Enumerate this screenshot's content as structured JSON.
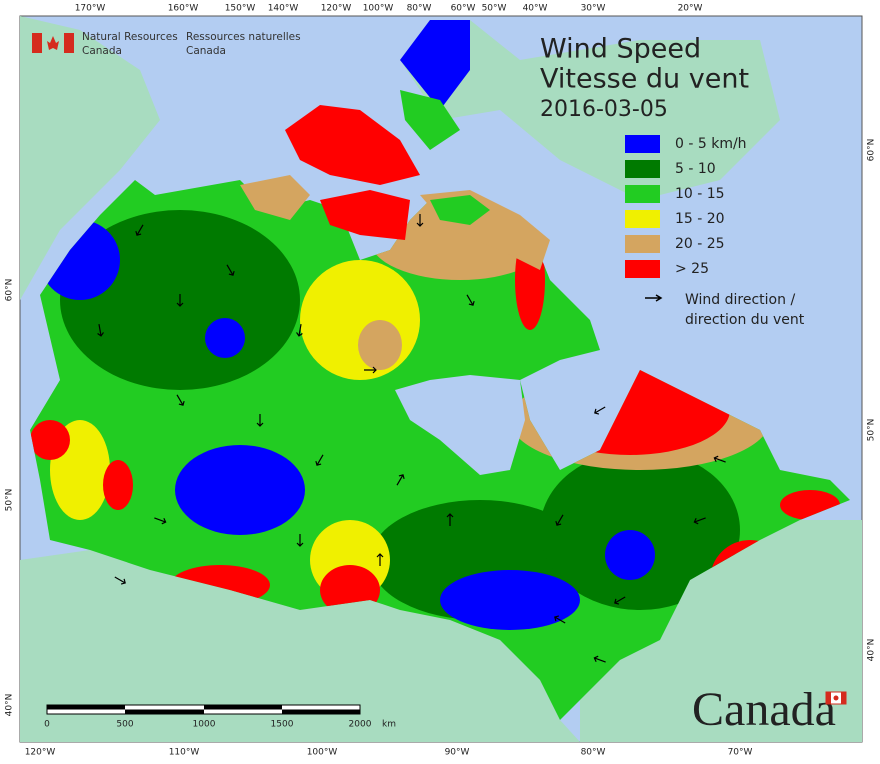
{
  "header": {
    "agency_en": [
      "Natural Resources",
      "Canada"
    ],
    "agency_fr": [
      "Ressources naturelles",
      "Canada"
    ]
  },
  "title": {
    "en": "Wind Speed",
    "fr": "Vitesse du vent",
    "date": "2016-03-05"
  },
  "legend": {
    "items": [
      {
        "label": "0 - 5 km/h",
        "color": "#0000ff"
      },
      {
        "label": "5 - 10",
        "color": "#007a00"
      },
      {
        "label": "10 - 15",
        "color": "#22cc22"
      },
      {
        "label": "15 - 20",
        "color": "#f0f000"
      },
      {
        "label": "20 - 25",
        "color": "#d4a560"
      },
      {
        "label": "> 25",
        "color": "#ff0000"
      }
    ],
    "arrow_label": [
      "Wind direction /",
      "direction du vent"
    ]
  },
  "top_labels": [
    "170°W",
    "160°W",
    "150°W",
    "140°W",
    "120°W",
    "100°W",
    "80°W",
    "60°W",
    "50°W",
    "40°W",
    "30°W",
    "20°W"
  ],
  "bottom_labels": [
    "120°W",
    "110°W",
    "100°W",
    "90°W",
    "80°W",
    "70°W"
  ],
  "left_labels": [
    "60°N",
    "50°N",
    "40°N"
  ],
  "right_labels": [
    "60°N",
    "50°N",
    "40°N"
  ],
  "scale": {
    "labels": [
      "0",
      "500",
      "1000",
      "1500",
      "2000"
    ],
    "unit": "km"
  },
  "wordmark": "Canada"
}
